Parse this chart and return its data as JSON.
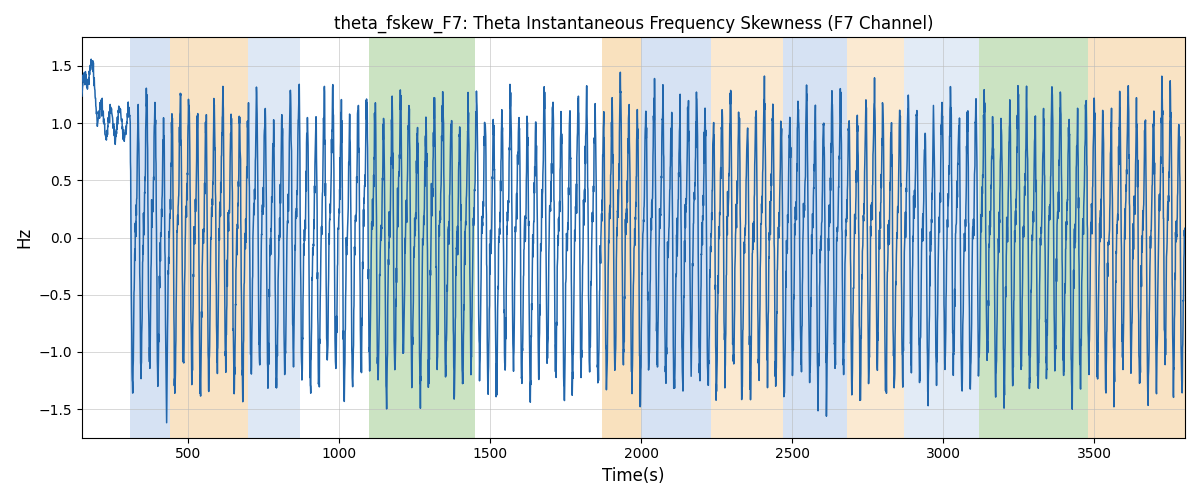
{
  "title": "theta_fskew_F7: Theta Instantaneous Frequency Skewness (F7 Channel)",
  "xlabel": "Time(s)",
  "ylabel": "Hz",
  "xlim": [
    150,
    3800
  ],
  "ylim": [
    -1.75,
    1.75
  ],
  "yticks": [
    -1.5,
    -1.0,
    -0.5,
    0.0,
    0.5,
    1.0,
    1.5
  ],
  "xticks": [
    500,
    1000,
    1500,
    2000,
    2500,
    3000,
    3500
  ],
  "line_color": "#2166ac",
  "line_width": 1.1,
  "figsize": [
    12,
    5
  ],
  "dpi": 100,
  "background_color": "#ffffff",
  "bands": [
    {
      "start": 310,
      "end": 440,
      "color": "#aec6e8",
      "alpha": 0.5
    },
    {
      "start": 440,
      "end": 700,
      "color": "#f5c98a",
      "alpha": 0.5
    },
    {
      "start": 700,
      "end": 870,
      "color": "#aec6e8",
      "alpha": 0.4
    },
    {
      "start": 1100,
      "end": 1450,
      "color": "#98c987",
      "alpha": 0.5
    },
    {
      "start": 1870,
      "end": 2000,
      "color": "#f5c98a",
      "alpha": 0.55
    },
    {
      "start": 2000,
      "end": 2230,
      "color": "#aec6e8",
      "alpha": 0.5
    },
    {
      "start": 2230,
      "end": 2470,
      "color": "#f5c98a",
      "alpha": 0.4
    },
    {
      "start": 2470,
      "end": 2680,
      "color": "#aec6e8",
      "alpha": 0.5
    },
    {
      "start": 2680,
      "end": 2870,
      "color": "#f5c98a",
      "alpha": 0.38
    },
    {
      "start": 2870,
      "end": 3120,
      "color": "#aec6e8",
      "alpha": 0.35
    },
    {
      "start": 3120,
      "end": 3480,
      "color": "#98c987",
      "alpha": 0.5
    },
    {
      "start": 3480,
      "end": 3800,
      "color": "#f5c98a",
      "alpha": 0.5
    }
  ],
  "signal_seed": 7,
  "n_points": 5000,
  "t_start": 150,
  "t_end": 3800
}
